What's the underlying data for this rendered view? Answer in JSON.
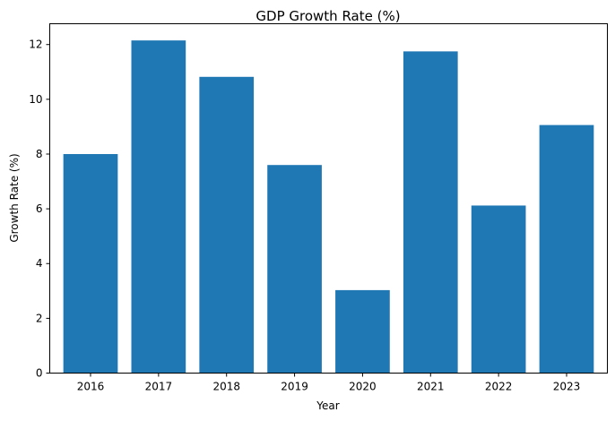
{
  "chart_data": {
    "type": "bar",
    "title": "GDP Growth Rate (%)",
    "xlabel": "Year",
    "ylabel": "Growth Rate (%)",
    "categories": [
      "2016",
      "2017",
      "2018",
      "2019",
      "2020",
      "2021",
      "2022",
      "2023"
    ],
    "values": [
      8.0,
      12.15,
      10.82,
      7.6,
      3.03,
      11.75,
      6.12,
      9.06
    ],
    "ylim": [
      0,
      12.76
    ],
    "yticks": [
      0,
      2,
      4,
      6,
      8,
      10,
      12
    ],
    "ytick_labels": [
      "0",
      "2",
      "4",
      "6",
      "8",
      "10",
      "12"
    ],
    "grid": false,
    "bar_color": "#1f77b4"
  }
}
